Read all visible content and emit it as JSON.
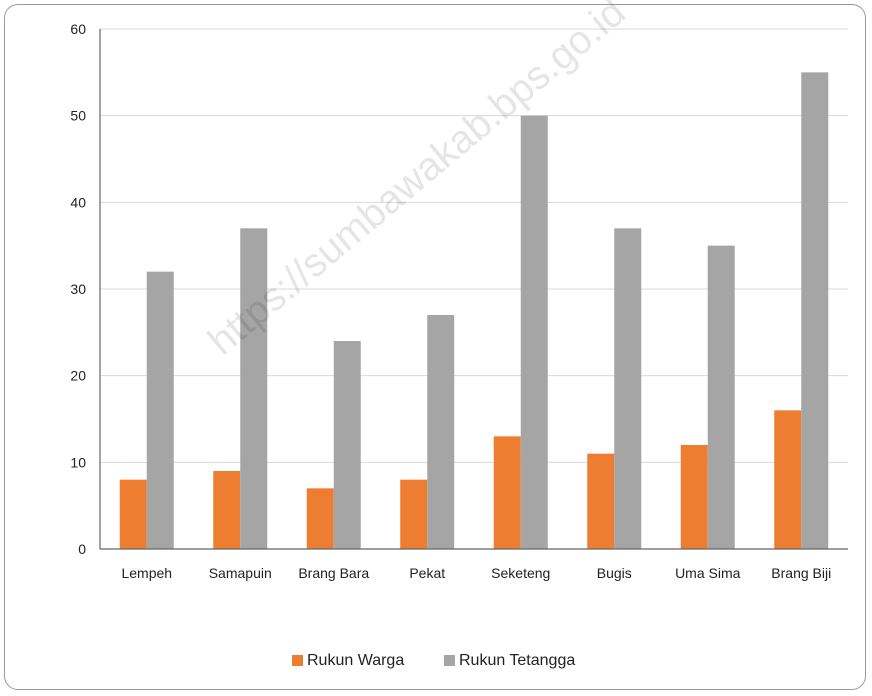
{
  "chart_data": {
    "type": "bar",
    "categories": [
      "Lempeh",
      "Samapuin",
      "Brang Bara",
      "Pekat",
      "Seketeng",
      "Bugis",
      "Uma Sima",
      "Brang Biji"
    ],
    "series": [
      {
        "name": "Rukun Warga",
        "color": "#ED7D31",
        "values": [
          8,
          9,
          7,
          8,
          13,
          11,
          12,
          16
        ]
      },
      {
        "name": "Rukun Tetangga",
        "color": "#A5A5A5",
        "values": [
          32,
          37,
          24,
          27,
          50,
          37,
          35,
          55
        ]
      }
    ],
    "yticks": [
      "0",
      "10",
      "20",
      "30",
      "40",
      "50",
      "60"
    ],
    "ylim": [
      0,
      60
    ],
    "grid": true,
    "legend_position": "bottom"
  },
  "watermark": "https://sumbawakab.bps.go.id"
}
